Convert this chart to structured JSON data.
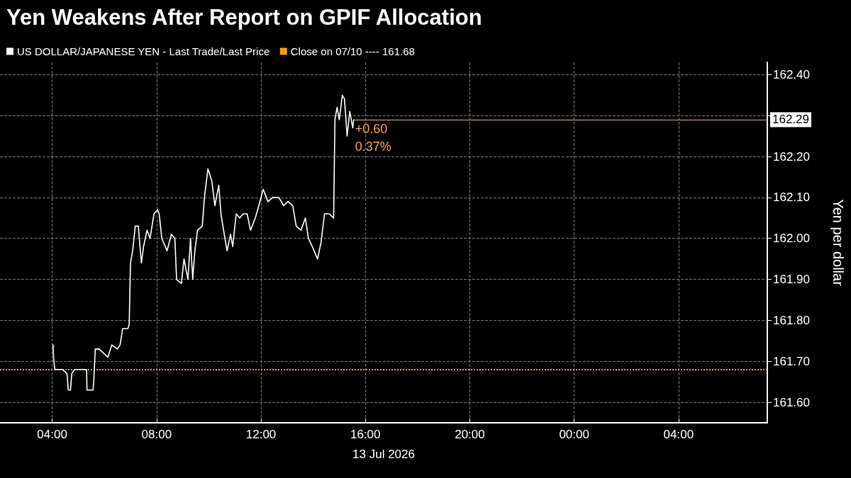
{
  "chart_data": {
    "type": "line",
    "title": "Yen Weakens After Report on GPIF Allocation",
    "xlabel": "13 Jul 2026",
    "ylabel": "Yen per dollar",
    "x": [
      "2026-07-13T04:02",
      "2026-07-13T04:03",
      "2026-07-13T04:06",
      "2026-07-13T04:24",
      "2026-07-13T04:34",
      "2026-07-13T04:37",
      "2026-07-13T04:42",
      "2026-07-13T04:45",
      "2026-07-13T04:51",
      "2026-07-13T05:06",
      "2026-07-13T05:19",
      "2026-07-13T05:20",
      "2026-07-13T05:34",
      "2026-07-13T05:36",
      "2026-07-13T05:39",
      "2026-07-13T05:48",
      "2026-07-13T05:58",
      "2026-07-13T06:08",
      "2026-07-13T06:17",
      "2026-07-13T06:30",
      "2026-07-13T06:36",
      "2026-07-13T06:42",
      "2026-07-13T06:54",
      "2026-07-13T06:57",
      "2026-07-13T07:00",
      "2026-07-13T07:05",
      "2026-07-13T07:11",
      "2026-07-13T07:18",
      "2026-07-13T07:25",
      "2026-07-13T07:30",
      "2026-07-13T07:38",
      "2026-07-13T07:45",
      "2026-07-13T07:54",
      "2026-07-13T08:02",
      "2026-07-13T08:06",
      "2026-07-13T08:12",
      "2026-07-13T08:24",
      "2026-07-13T08:34",
      "2026-07-13T08:42",
      "2026-07-13T08:46",
      "2026-07-13T08:57",
      "2026-07-13T09:03",
      "2026-07-13T09:12",
      "2026-07-13T09:18",
      "2026-07-13T09:23",
      "2026-07-13T09:28",
      "2026-07-13T09:34",
      "2026-07-13T09:45",
      "2026-07-13T09:50",
      "2026-07-13T09:58",
      "2026-07-13T10:07",
      "2026-07-13T10:14",
      "2026-07-13T10:23",
      "2026-07-13T10:28",
      "2026-07-13T10:34",
      "2026-07-13T10:42",
      "2026-07-13T10:50",
      "2026-07-13T10:55",
      "2026-07-13T11:03",
      "2026-07-13T11:11",
      "2026-07-13T11:19",
      "2026-07-13T11:28",
      "2026-07-13T11:36",
      "2026-07-13T11:47",
      "2026-07-13T11:55",
      "2026-07-13T12:05",
      "2026-07-13T12:16",
      "2026-07-13T12:27",
      "2026-07-13T12:41",
      "2026-07-13T12:52",
      "2026-07-13T13:02",
      "2026-07-13T13:13",
      "2026-07-13T13:21",
      "2026-07-13T13:32",
      "2026-07-13T13:42",
      "2026-07-13T13:49",
      "2026-07-13T13:58",
      "2026-07-13T14:10",
      "2026-07-13T14:18",
      "2026-07-13T14:26",
      "2026-07-13T14:37",
      "2026-07-13T14:47",
      "2026-07-13T14:50",
      "2026-07-13T14:55",
      "2026-07-13T15:00",
      "2026-07-13T15:07",
      "2026-07-13T15:12",
      "2026-07-13T15:18",
      "2026-07-13T15:24",
      "2026-07-13T15:31",
      "2026-07-13T15:33"
    ],
    "series": [
      {
        "name": "US DOLLAR/JAPANESE YEN - Last Trade/Last Price",
        "color": "#ffffff",
        "values": [
          161.74,
          161.71,
          161.68,
          161.68,
          161.67,
          161.63,
          161.63,
          161.67,
          161.68,
          161.68,
          161.68,
          161.63,
          161.63,
          161.66,
          161.73,
          161.73,
          161.72,
          161.71,
          161.74,
          161.73,
          161.74,
          161.78,
          161.78,
          161.79,
          161.94,
          161.97,
          162.03,
          162.03,
          161.94,
          161.98,
          162.02,
          162.0,
          162.06,
          162.07,
          162.06,
          162.0,
          161.97,
          162.01,
          162.0,
          161.9,
          161.89,
          161.95,
          161.9,
          162.0,
          161.9,
          161.97,
          162.02,
          162.03,
          162.1,
          162.17,
          162.14,
          162.08,
          162.13,
          162.06,
          162.02,
          161.97,
          162.01,
          161.98,
          162.06,
          162.05,
          162.06,
          162.06,
          162.02,
          162.05,
          162.08,
          162.12,
          162.09,
          162.1,
          162.1,
          162.08,
          162.09,
          162.08,
          162.03,
          162.02,
          162.05,
          162.0,
          161.98,
          161.95,
          161.99,
          162.06,
          162.06,
          162.05,
          162.29,
          162.32,
          162.29,
          162.35,
          162.34,
          162.25,
          162.31,
          162.27,
          162.29
        ]
      }
    ],
    "xlim": [
      "2026-07-13T02:00",
      "2026-07-14T07:24"
    ],
    "xticks": [
      {
        "value": "2026-07-13T04:00",
        "label": "04:00"
      },
      {
        "value": "2026-07-13T08:00",
        "label": "08:00"
      },
      {
        "value": "2026-07-13T12:00",
        "label": "12:00"
      },
      {
        "value": "2026-07-13T16:00",
        "label": "16:00"
      },
      {
        "value": "2026-07-13T20:00",
        "label": "20:00"
      },
      {
        "value": "2026-07-14T00:00",
        "label": "00:00"
      },
      {
        "value": "2026-07-14T04:00",
        "label": "04:00"
      }
    ],
    "ylim": [
      161.55,
      162.43
    ],
    "yticks": [
      {
        "value": 161.6,
        "label": "161.60"
      },
      {
        "value": 161.7,
        "label": "161.70"
      },
      {
        "value": 161.8,
        "label": "161.80"
      },
      {
        "value": 161.9,
        "label": "161.90"
      },
      {
        "value": 162.0,
        "label": "162.00"
      },
      {
        "value": 162.1,
        "label": "162.10"
      },
      {
        "value": 162.2,
        "label": "162.20"
      },
      {
        "value": 162.3,
        "label": null
      },
      {
        "value": 162.4,
        "label": "162.40"
      }
    ],
    "ref_lines": [
      {
        "axis": "y",
        "value": 161.68,
        "label": "Close on 07/10 ---- 161.68",
        "color": "#f39c1f",
        "line_style": "dotted"
      },
      {
        "axis": "y",
        "value": 162.29,
        "label": "162.29",
        "color": "#f3a55a",
        "line_style": "solid"
      }
    ],
    "annotations": [
      "+0.60",
      "0.37%"
    ],
    "grid": true,
    "legend": "top left",
    "marker": "none",
    "line_style": "solid"
  }
}
